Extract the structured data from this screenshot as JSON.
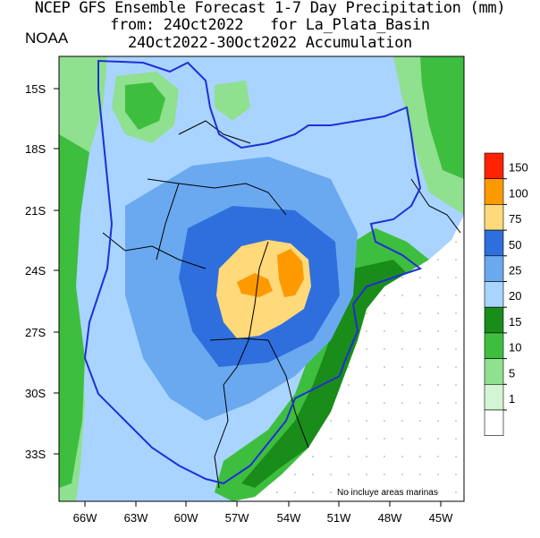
{
  "title": {
    "line1": "NCEP GFS Ensemble Forecast 1-7 Day Precipitation (mm)",
    "line2": "from: 24Oct2022   for La_Plata_Basin",
    "line3": "24Oct2022-30Oct2022 Accumulation"
  },
  "agency": "NOAA",
  "note": "No incluye areas marinas",
  "axes": {
    "lat_ticks": [
      "15S",
      "18S",
      "21S",
      "24S",
      "27S",
      "30S",
      "33S"
    ],
    "lon_ticks": [
      "66W",
      "63W",
      "60W",
      "57W",
      "54W",
      "51W",
      "48W",
      "45W"
    ]
  },
  "legend": {
    "levels": [
      "150",
      "100",
      "75",
      "50",
      "25",
      "20",
      "15",
      "10",
      "5",
      "1"
    ],
    "colors": [
      "#ff2200",
      "#ff9900",
      "#ffd97a",
      "#2f6fdd",
      "#6aa9f0",
      "#a9d4ff",
      "#1a8c1a",
      "#3ebe3e",
      "#8fe08f",
      "#d4f5d4",
      "#ffffff"
    ]
  },
  "colors": {
    "lt1": "#d4f5d4",
    "lt5": "#8fe08f",
    "lt10": "#3ebe3e",
    "lt15": "#1a8c1a",
    "lt20": "#a9d4ff",
    "lt25": "#6aa9f0",
    "lt50": "#2f6fdd",
    "lt75": "#ffd97a",
    "lt100": "#ff9900",
    "basin_outline": "#1f2fd6",
    "borders": "#000000"
  }
}
